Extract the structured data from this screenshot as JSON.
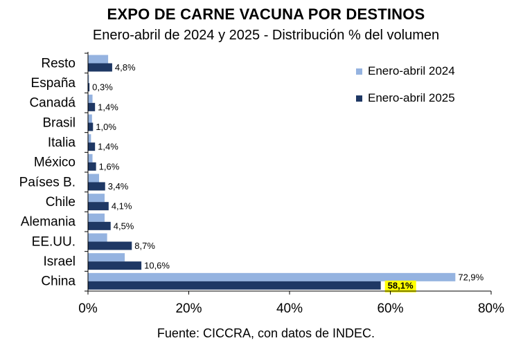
{
  "title": "EXPO DE CARNE VACUNA POR DESTINOS",
  "subtitle": "Enero-abril de 2024 y 2025 - Distribución % del volumen",
  "source": "Fuente: CICCRA, con datos de INDEC.",
  "colors": {
    "series_2024": "#95b3e0",
    "series_2025": "#1f3864",
    "highlight": "#ffff00",
    "axis": "#000000"
  },
  "chart_data": {
    "type": "bar",
    "orientation": "horizontal",
    "title": "EXPO DE CARNE VACUNA POR DESTINOS",
    "subtitle": "Enero-abril de 2024 y 2025 - Distribución % del volumen",
    "categories": [
      "Resto",
      "España",
      "Canadá",
      "Brasil",
      "Italia",
      "México",
      "Países B.",
      "Chile",
      "Alemania",
      "EE.UU.",
      "Israel",
      "China"
    ],
    "series": [
      {
        "name": "Enero-abril 2024",
        "values": [
          4.0,
          0.2,
          0.9,
          0.8,
          0.6,
          0.9,
          2.2,
          3.3,
          3.3,
          3.8,
          7.3,
          72.9
        ]
      },
      {
        "name": "Enero-abril 2025",
        "values": [
          4.8,
          0.3,
          1.4,
          1.0,
          1.4,
          1.6,
          3.4,
          4.1,
          4.5,
          8.7,
          10.6,
          58.1
        ]
      }
    ],
    "data_labels": {
      "Enero-abril 2024": [
        "",
        "",
        "",
        "",
        "",
        "",
        "",
        "",
        "",
        "",
        "",
        "72,9%"
      ],
      "Enero-abril 2025": [
        "4,8%",
        "0,3%",
        "1,4%",
        "1,0%",
        "1,4%",
        "1,6%",
        "3,4%",
        "4,1%",
        "4,5%",
        "8,7%",
        "10,6%",
        "58,1%"
      ]
    },
    "highlighted_label": "58,1%",
    "xlim": [
      0,
      80
    ],
    "xticks": [
      0,
      20,
      40,
      60,
      80
    ],
    "xtick_labels": [
      "0%",
      "20%",
      "40%",
      "60%",
      "80%"
    ],
    "legend": {
      "position": "right",
      "entries": [
        "Enero-abril 2024",
        "Enero-abril 2025"
      ]
    },
    "grid": false
  }
}
